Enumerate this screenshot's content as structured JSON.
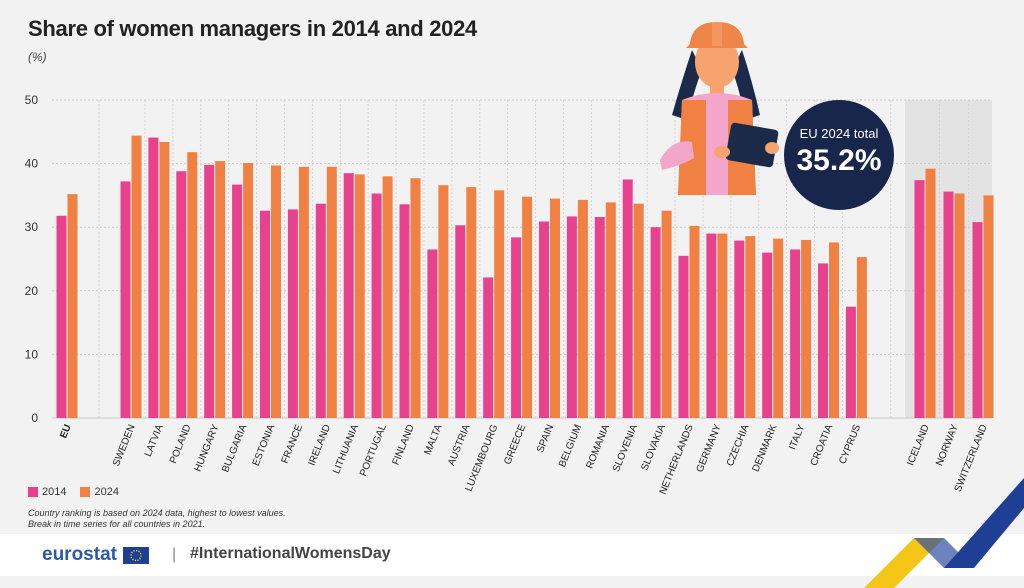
{
  "title": "Share of women managers in 2014 and 2024",
  "unit": "(%)",
  "badge": {
    "label": "EU 2024 total",
    "value": "35.2%"
  },
  "legend": {
    "s2014": "2014",
    "s2024": "2024"
  },
  "notes": {
    "line1": "Country ranking is based on 2024 data, highest to lowest values.",
    "line2": "Break in time series for all countries in 2021."
  },
  "footer": {
    "logo": "eurostat",
    "hashtag": "#InternationalWomensDay"
  },
  "colors": {
    "s2014": "#e8418e",
    "s2024": "#f08142",
    "shade": "#e3e3e3",
    "badge": "#17264a"
  },
  "icons": {
    "illustration": "woman-engineer-with-tablet-illustration",
    "flag": "eu-flag-icon",
    "decor": "diagonal-stripes-decoration"
  },
  "chart_data": {
    "type": "bar",
    "ylim": [
      0,
      50
    ],
    "yticks": [
      0,
      10,
      20,
      30,
      40,
      50
    ],
    "grid": true,
    "categories": [
      "EU",
      "SWEDEN",
      "LATVIA",
      "POLAND",
      "HUNGARY",
      "BULGARIA",
      "ESTONIA",
      "FRANCE",
      "IRELAND",
      "LITHUANIA",
      "PORTUGAL",
      "FINLAND",
      "MALTA",
      "AUSTRIA",
      "LUXEMBOURG",
      "GREECE",
      "SPAIN",
      "BELGIUM",
      "ROMANIA",
      "SLOVENIA",
      "SLOVAKIA",
      "NETHERLANDS",
      "GERMANY",
      "CZECHIA",
      "DENMARK",
      "ITALY",
      "CROATIA",
      "CYPRUS",
      "ICELAND",
      "NORWAY",
      "SWITZERLAND"
    ],
    "series": [
      {
        "name": "2014",
        "values": [
          31.8,
          37.2,
          44.1,
          38.8,
          39.8,
          36.7,
          32.6,
          32.8,
          33.7,
          38.5,
          35.3,
          33.6,
          26.5,
          30.3,
          22.1,
          28.4,
          30.9,
          31.7,
          31.6,
          37.5,
          30.0,
          25.5,
          29.0,
          27.9,
          26.0,
          26.5,
          24.3,
          17.5,
          37.4,
          35.6,
          30.8
        ]
      },
      {
        "name": "2024",
        "values": [
          35.2,
          44.4,
          43.4,
          41.8,
          40.4,
          40.1,
          39.7,
          39.5,
          39.5,
          38.3,
          38.0,
          37.7,
          36.6,
          36.3,
          35.8,
          34.8,
          34.5,
          34.3,
          33.9,
          33.7,
          32.6,
          30.2,
          29.0,
          28.6,
          28.2,
          28.0,
          27.6,
          25.3,
          39.2,
          35.3,
          35.0
        ]
      }
    ]
  }
}
